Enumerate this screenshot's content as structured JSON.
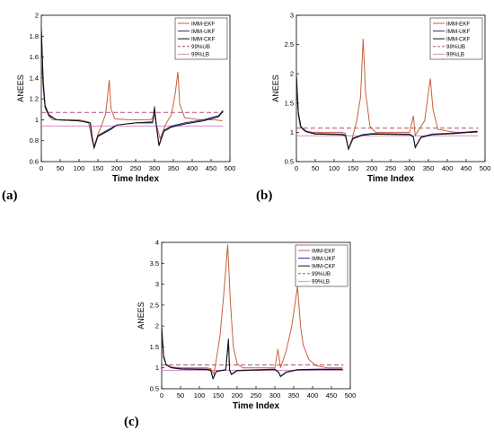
{
  "panel_letters": [
    "(a)",
    "(b)",
    "(c)"
  ],
  "chart_data": [
    {
      "type": "line",
      "panel": "(a)",
      "xlabel": "Time Index",
      "ylabel": "ANEES",
      "xlim": [
        0,
        500
      ],
      "ylim": [
        0.6,
        2
      ],
      "xticks": [
        0,
        50,
        100,
        150,
        200,
        250,
        300,
        350,
        400,
        450,
        500
      ],
      "yticks": [
        0.6,
        0.8,
        1,
        1.2,
        1.4,
        1.6,
        1.8,
        2
      ],
      "ytick_labels": [
        "0.6",
        "0.8",
        "1",
        "1.2",
        "1.4",
        "1.6",
        "1.8",
        "2"
      ],
      "legend_position": "top-right",
      "series": [
        {
          "name": "IMM-EKF",
          "color": "#c8603c",
          "points": [
            [
              0,
              1.6
            ],
            [
              5,
              1.3
            ],
            [
              10,
              1.12
            ],
            [
              20,
              1.04
            ],
            [
              30,
              1.0
            ],
            [
              60,
              1.0
            ],
            [
              100,
              1.0
            ],
            [
              125,
              0.98
            ],
            [
              135,
              0.8
            ],
            [
              140,
              0.74
            ],
            [
              150,
              0.86
            ],
            [
              160,
              0.95
            ],
            [
              170,
              1.05
            ],
            [
              175,
              1.2
            ],
            [
              180,
              1.38
            ],
            [
              185,
              1.1
            ],
            [
              195,
              1.01
            ],
            [
              230,
              1.0
            ],
            [
              290,
              1.0
            ],
            [
              300,
              1.04
            ],
            [
              305,
              0.95
            ],
            [
              315,
              0.82
            ],
            [
              330,
              0.96
            ],
            [
              345,
              1.05
            ],
            [
              355,
              1.25
            ],
            [
              362,
              1.46
            ],
            [
              367,
              1.15
            ],
            [
              380,
              1.02
            ],
            [
              420,
              1.0
            ],
            [
              460,
              1.0
            ],
            [
              480,
              0.99
            ]
          ]
        },
        {
          "name": "IMM-UKF",
          "color": "#2b2c7a",
          "points": [
            [
              0,
              1.9
            ],
            [
              5,
              1.38
            ],
            [
              10,
              1.14
            ],
            [
              20,
              1.05
            ],
            [
              40,
              1.0
            ],
            [
              100,
              0.99
            ],
            [
              130,
              0.97
            ],
            [
              135,
              0.83
            ],
            [
              140,
              0.74
            ],
            [
              150,
              0.85
            ],
            [
              165,
              0.88
            ],
            [
              185,
              0.92
            ],
            [
              200,
              0.95
            ],
            [
              250,
              0.97
            ],
            [
              295,
              0.97
            ],
            [
              300,
              1.13
            ],
            [
              305,
              0.95
            ],
            [
              312,
              0.76
            ],
            [
              325,
              0.9
            ],
            [
              345,
              0.94
            ],
            [
              380,
              0.97
            ],
            [
              430,
              1.0
            ],
            [
              470,
              1.04
            ],
            [
              482,
              1.09
            ]
          ]
        },
        {
          "name": "IMM-CKF",
          "color": "#111111",
          "points": [
            [
              0,
              1.85
            ],
            [
              5,
              1.35
            ],
            [
              10,
              1.12
            ],
            [
              20,
              1.04
            ],
            [
              40,
              1.0
            ],
            [
              100,
              0.99
            ],
            [
              130,
              0.97
            ],
            [
              135,
              0.82
            ],
            [
              140,
              0.73
            ],
            [
              150,
              0.84
            ],
            [
              165,
              0.87
            ],
            [
              185,
              0.91
            ],
            [
              200,
              0.95
            ],
            [
              250,
              0.97
            ],
            [
              295,
              0.98
            ],
            [
              300,
              1.1
            ],
            [
              305,
              0.94
            ],
            [
              312,
              0.75
            ],
            [
              325,
              0.89
            ],
            [
              345,
              0.93
            ],
            [
              380,
              0.96
            ],
            [
              430,
              0.99
            ],
            [
              470,
              1.03
            ],
            [
              482,
              1.08
            ]
          ]
        },
        {
          "name": "99%UB",
          "color": "#b54d78",
          "dash": "5,3",
          "points": [
            [
              0,
              1.07
            ],
            [
              482,
              1.07
            ]
          ]
        },
        {
          "name": "99%LB",
          "color": "#d890c0",
          "points": [
            [
              0,
              0.94
            ],
            [
              482,
              0.94
            ]
          ]
        }
      ]
    },
    {
      "type": "line",
      "panel": "(b)",
      "xlabel": "Time Index",
      "ylabel": "ANEES",
      "xlim": [
        0,
        500
      ],
      "ylim": [
        0.5,
        3
      ],
      "xticks": [
        0,
        50,
        100,
        150,
        200,
        250,
        300,
        350,
        400,
        450,
        500
      ],
      "yticks": [
        0.5,
        1,
        1.5,
        2,
        2.5,
        3
      ],
      "ytick_labels": [
        "0.5",
        "1",
        "1.5",
        "2",
        "2.5",
        "3"
      ],
      "legend_position": "top-right",
      "series": [
        {
          "name": "IMM-EKF",
          "color": "#c8603c",
          "points": [
            [
              0,
              1.9
            ],
            [
              5,
              1.3
            ],
            [
              10,
              1.1
            ],
            [
              20,
              1.03
            ],
            [
              40,
              1.0
            ],
            [
              120,
              1.0
            ],
            [
              130,
              0.98
            ],
            [
              138,
              0.72
            ],
            [
              148,
              0.9
            ],
            [
              160,
              1.2
            ],
            [
              170,
              1.6
            ],
            [
              177,
              2.6
            ],
            [
              183,
              1.7
            ],
            [
              195,
              1.1
            ],
            [
              210,
              1.0
            ],
            [
              300,
              1.0
            ],
            [
              310,
              1.28
            ],
            [
              315,
              0.95
            ],
            [
              325,
              1.05
            ],
            [
              340,
              1.2
            ],
            [
              355,
              1.92
            ],
            [
              362,
              1.4
            ],
            [
              375,
              1.05
            ],
            [
              420,
              1.0
            ],
            [
              480,
              1.0
            ]
          ]
        },
        {
          "name": "IMM-UKF",
          "color": "#2b2c7a",
          "points": [
            [
              0,
              2.0
            ],
            [
              5,
              1.35
            ],
            [
              12,
              1.1
            ],
            [
              25,
              1.02
            ],
            [
              50,
              0.98
            ],
            [
              120,
              0.97
            ],
            [
              130,
              0.95
            ],
            [
              138,
              0.72
            ],
            [
              150,
              0.9
            ],
            [
              175,
              0.96
            ],
            [
              200,
              0.98
            ],
            [
              300,
              0.97
            ],
            [
              310,
              0.93
            ],
            [
              315,
              0.75
            ],
            [
              330,
              0.92
            ],
            [
              360,
              0.97
            ],
            [
              420,
              0.99
            ],
            [
              480,
              1.02
            ]
          ]
        },
        {
          "name": "IMM-CKF",
          "color": "#111111",
          "points": [
            [
              0,
              1.95
            ],
            [
              5,
              1.33
            ],
            [
              12,
              1.09
            ],
            [
              25,
              1.01
            ],
            [
              50,
              0.97
            ],
            [
              120,
              0.96
            ],
            [
              130,
              0.94
            ],
            [
              138,
              0.71
            ],
            [
              150,
              0.89
            ],
            [
              175,
              0.95
            ],
            [
              200,
              0.97
            ],
            [
              300,
              0.96
            ],
            [
              310,
              0.92
            ],
            [
              315,
              0.74
            ],
            [
              330,
              0.91
            ],
            [
              360,
              0.96
            ],
            [
              420,
              0.98
            ],
            [
              480,
              1.01
            ]
          ]
        },
        {
          "name": "99%UB",
          "color": "#b54d78",
          "dash": "5,3",
          "points": [
            [
              0,
              1.07
            ],
            [
              482,
              1.07
            ]
          ]
        },
        {
          "name": "99%LB",
          "color": "#d890c0",
          "points": [
            [
              0,
              0.94
            ],
            [
              482,
              0.94
            ]
          ]
        }
      ]
    },
    {
      "type": "line",
      "panel": "(c)",
      "xlabel": "Time Index",
      "ylabel": "ANEES",
      "xlim": [
        0,
        500
      ],
      "ylim": [
        0.5,
        4
      ],
      "xticks": [
        0,
        50,
        100,
        150,
        200,
        250,
        300,
        350,
        400,
        450,
        500
      ],
      "yticks": [
        0.5,
        1,
        1.5,
        2,
        2.5,
        3,
        3.5,
        4
      ],
      "ytick_labels": [
        "0.5",
        "1",
        "1.5",
        "2",
        "2.5",
        "3",
        "3.5",
        "4"
      ],
      "legend_position": "top-right",
      "series": [
        {
          "name": "IMM-EKF",
          "color": "#c8603c",
          "points": [
            [
              0,
              1.9
            ],
            [
              5,
              1.25
            ],
            [
              12,
              1.08
            ],
            [
              25,
              1.02
            ],
            [
              50,
              1.0
            ],
            [
              120,
              1.0
            ],
            [
              130,
              0.98
            ],
            [
              138,
              0.85
            ],
            [
              145,
              1.2
            ],
            [
              155,
              1.8
            ],
            [
              165,
              2.8
            ],
            [
              175,
              3.95
            ],
            [
              182,
              2.6
            ],
            [
              190,
              1.5
            ],
            [
              200,
              1.1
            ],
            [
              215,
              1.0
            ],
            [
              300,
              1.0
            ],
            [
              308,
              1.45
            ],
            [
              315,
              1.0
            ],
            [
              330,
              1.4
            ],
            [
              345,
              2.0
            ],
            [
              360,
              2.95
            ],
            [
              368,
              2.0
            ],
            [
              375,
              1.55
            ],
            [
              390,
              1.2
            ],
            [
              410,
              1.05
            ],
            [
              440,
              1.0
            ],
            [
              480,
              1.0
            ]
          ]
        },
        {
          "name": "IMM-UKF",
          "color": "#2b2c7a",
          "points": [
            [
              0,
              2.0
            ],
            [
              5,
              1.3
            ],
            [
              12,
              1.08
            ],
            [
              25,
              1.01
            ],
            [
              50,
              0.98
            ],
            [
              120,
              0.97
            ],
            [
              130,
              0.95
            ],
            [
              136,
              0.75
            ],
            [
              145,
              0.92
            ],
            [
              170,
              0.96
            ],
            [
              177,
              1.7
            ],
            [
              180,
              0.95
            ],
            [
              185,
              0.85
            ],
            [
              200,
              0.94
            ],
            [
              300,
              0.97
            ],
            [
              310,
              0.9
            ],
            [
              315,
              0.8
            ],
            [
              330,
              0.9
            ],
            [
              360,
              0.96
            ],
            [
              420,
              0.97
            ],
            [
              480,
              0.97
            ]
          ]
        },
        {
          "name": "IMM-CKF",
          "color": "#111111",
          "points": [
            [
              0,
              1.95
            ],
            [
              5,
              1.28
            ],
            [
              12,
              1.07
            ],
            [
              25,
              1.0
            ],
            [
              50,
              0.97
            ],
            [
              120,
              0.96
            ],
            [
              130,
              0.94
            ],
            [
              136,
              0.74
            ],
            [
              145,
              0.91
            ],
            [
              170,
              0.95
            ],
            [
              177,
              1.65
            ],
            [
              180,
              0.94
            ],
            [
              185,
              0.84
            ],
            [
              200,
              0.93
            ],
            [
              300,
              0.96
            ],
            [
              310,
              0.89
            ],
            [
              315,
              0.79
            ],
            [
              330,
              0.89
            ],
            [
              360,
              0.95
            ],
            [
              420,
              0.96
            ],
            [
              480,
              0.96
            ]
          ]
        },
        {
          "name": "99%UB",
          "color": "#b54d78",
          "dash": "5,3",
          "points": [
            [
              0,
              1.07
            ],
            [
              482,
              1.07
            ]
          ]
        },
        {
          "name": "99%LB",
          "color": "#d890c0",
          "points": [
            [
              0,
              0.94
            ],
            [
              482,
              0.94
            ]
          ]
        }
      ]
    }
  ]
}
